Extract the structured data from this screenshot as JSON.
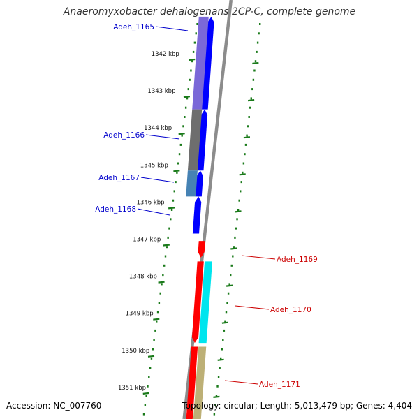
{
  "title": "Anaeromyxobacter dehalogenans 2CP-C, complete genome",
  "accession": "Accession: NC_007760",
  "topology": "Topology: circular; Length: 5,013,479 bp; Genes: 4,404",
  "ticks": [
    {
      "label": "1342 kbp",
      "kbp": 1342
    },
    {
      "label": "1343 kbp",
      "kbp": 1343
    },
    {
      "label": "1344 kbp",
      "kbp": 1344
    },
    {
      "label": "1345 kbp",
      "kbp": 1345
    },
    {
      "label": "1346 kbp",
      "kbp": 1346
    },
    {
      "label": "1347 kbp",
      "kbp": 1347
    },
    {
      "label": "1348 kbp",
      "kbp": 1348
    },
    {
      "label": "1349 kbp",
      "kbp": 1349
    },
    {
      "label": "1350 kbp",
      "kbp": 1350
    },
    {
      "label": "1351 kbp",
      "kbp": 1351
    }
  ],
  "genes": [
    {
      "label": "Adeh_1165",
      "strand": "reverse",
      "start_kbp": 1341.0,
      "end_kbp": 1343.5,
      "cog_color": "#7a68d8",
      "label_color": "#0000cc"
    },
    {
      "label": "Adeh_1166",
      "strand": "reverse",
      "start_kbp": 1343.5,
      "end_kbp": 1345.15,
      "cog_color": "#6e6e6e",
      "label_color": "#0000cc"
    },
    {
      "label": "Adeh_1167",
      "strand": "reverse",
      "start_kbp": 1345.15,
      "end_kbp": 1345.85,
      "cog_color": "#4682b4",
      "label_color": "#0000cc"
    },
    {
      "label": "Adeh_1168",
      "strand": "reverse",
      "start_kbp": 1345.85,
      "end_kbp": 1346.85,
      "cog_color": "",
      "label_color": "#0000cc"
    },
    {
      "label": "Adeh_1169",
      "strand": "forward",
      "start_kbp": 1347.05,
      "end_kbp": 1347.5,
      "cog_color": "",
      "label_color": "#cc0000"
    },
    {
      "label": "Adeh_1170",
      "strand": "forward",
      "start_kbp": 1347.6,
      "end_kbp": 1349.8,
      "cog_color": "#00e5ee",
      "label_color": "#cc0000"
    },
    {
      "label": "Adeh_1171",
      "strand": "forward",
      "start_kbp": 1349.9,
      "end_kbp": 1352.0,
      "cog_color": "#bdb076",
      "label_color": "#cc0000"
    }
  ],
  "colors": {
    "forward_cds": "#ff0000",
    "reverse_cds": "#0000ff",
    "backbone": "#8c8c8c",
    "gc_dots": "#1a7a1a"
  }
}
